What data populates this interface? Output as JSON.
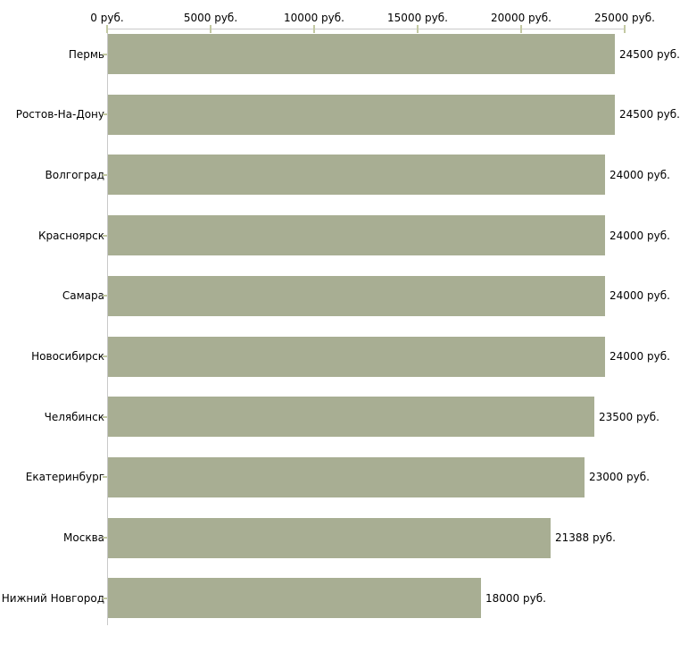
{
  "chart_data": {
    "type": "bar",
    "orientation": "horizontal",
    "categories": [
      "Пермь",
      "Ростов-На-Дону",
      "Волгоград",
      "Красноярск",
      "Самара",
      "Новосибирск",
      "Челябинск",
      "Екатеринбург",
      "Москва",
      "Нижний Новгород"
    ],
    "values": [
      24500,
      24500,
      24000,
      24000,
      24000,
      24000,
      23500,
      23000,
      21388,
      18000
    ],
    "value_labels": [
      "24500 руб.",
      "24500 руб.",
      "24000 руб.",
      "24000 руб.",
      "24000 руб.",
      "24000 руб.",
      "23500 руб.",
      "23000 руб.",
      "21388 руб.",
      "18000 руб."
    ],
    "x_axis": {
      "position": "top",
      "min": 0,
      "max": 25000,
      "unit": "руб.",
      "ticks": [
        0,
        5000,
        10000,
        15000,
        20000,
        25000
      ],
      "tick_labels": [
        "0 руб.",
        "5000 руб.",
        "10000 руб.",
        "15000 руб.",
        "20000 руб.",
        "25000 руб."
      ]
    },
    "grid": false,
    "legend": false,
    "colors": {
      "bar": "#a8ae93",
      "axis_line": "#c9c9c9",
      "tick_mark": "#c3c9a2",
      "text": "#000000",
      "background": "#ffffff"
    }
  }
}
